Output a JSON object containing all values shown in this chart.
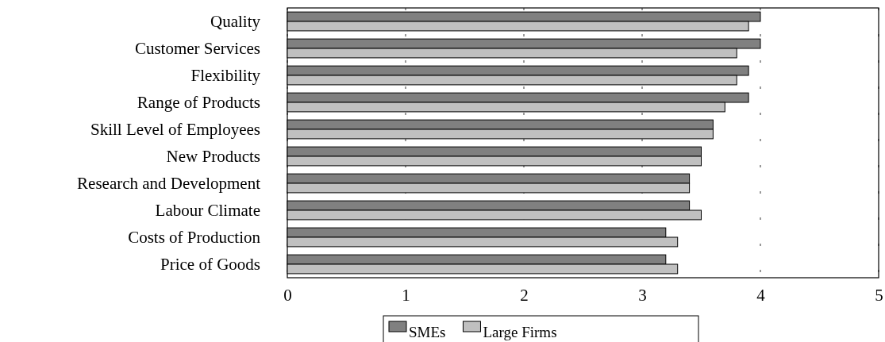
{
  "chart_data": {
    "type": "bar",
    "orientation": "horizontal",
    "categories": [
      "Quality",
      "Customer Services",
      "Flexibility",
      "Range of Products",
      "Skill Level of Employees",
      "New Products",
      "Research and Development",
      "Labour Climate",
      "Costs of Production",
      "Price of Goods"
    ],
    "series": [
      {
        "name": "SMEs",
        "color": "#808080",
        "values": [
          4.0,
          4.0,
          3.9,
          3.9,
          3.6,
          3.5,
          3.4,
          3.4,
          3.2,
          3.2
        ]
      },
      {
        "name": "Large Firms",
        "color": "#c0c0c0",
        "values": [
          3.9,
          3.8,
          3.8,
          3.7,
          3.6,
          3.5,
          3.4,
          3.5,
          3.3,
          3.3
        ]
      }
    ],
    "xlim": [
      0,
      5
    ],
    "xticks": [
      0,
      1,
      2,
      3,
      4,
      5
    ],
    "grid": "x",
    "legend": "bottom"
  }
}
